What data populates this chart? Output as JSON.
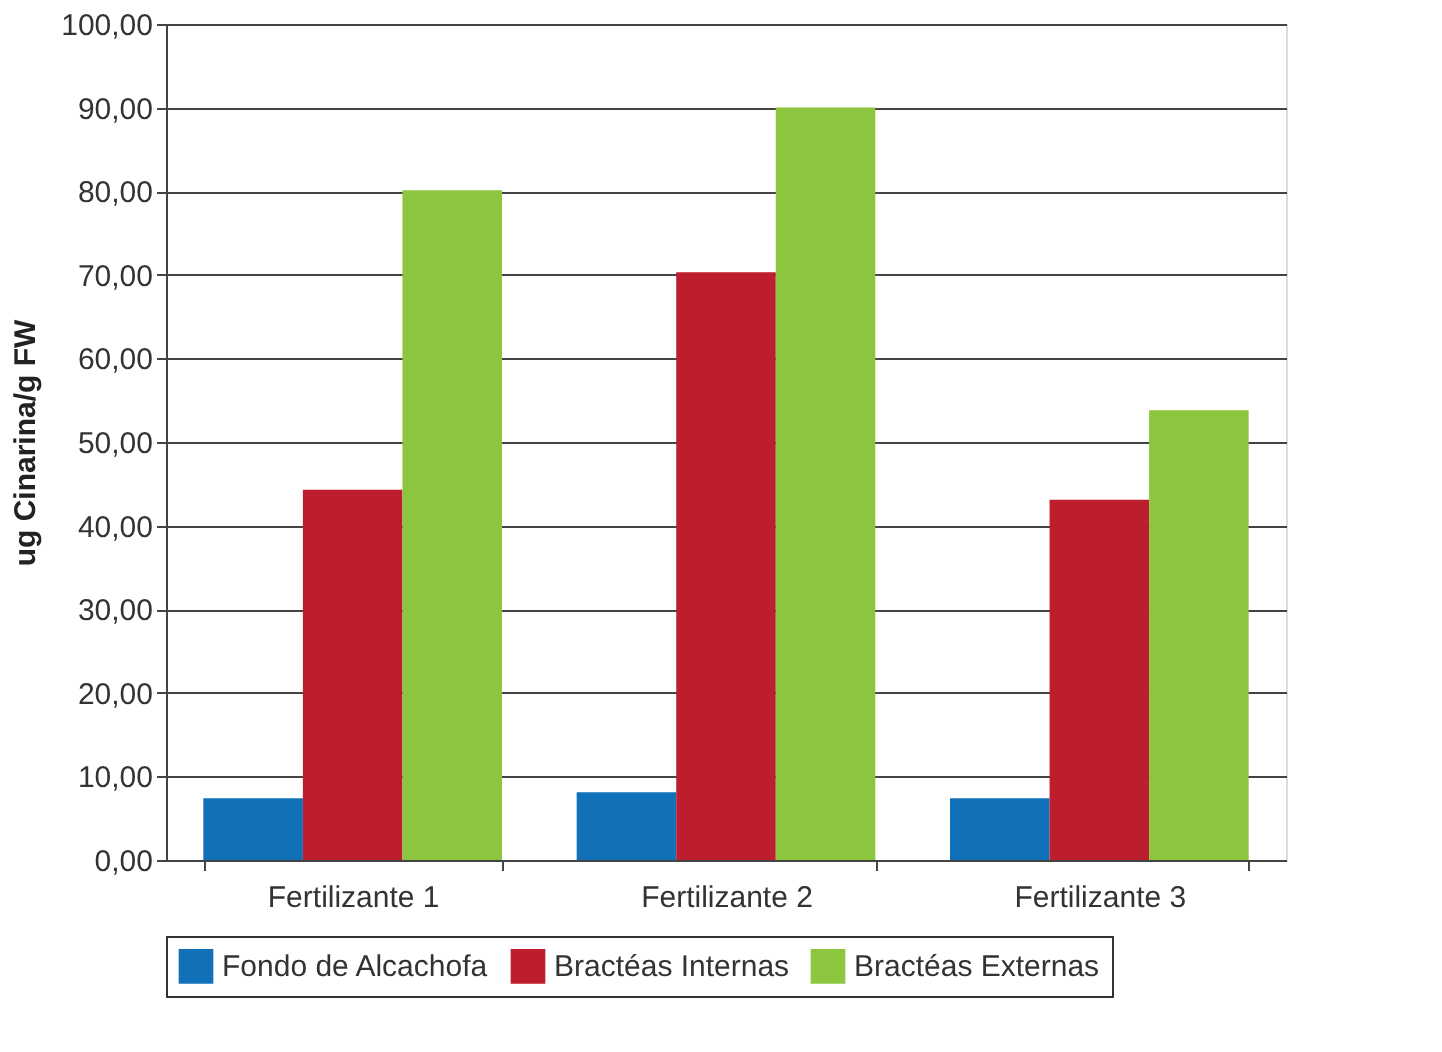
{
  "chart_data": {
    "type": "bar",
    "ylabel": "ug Cinarina/g FW",
    "categories": [
      "Fertilizante 1",
      "Fertilizante 2",
      "Fertilizante 3"
    ],
    "series": [
      {
        "name": "Fondo de Alcachofa",
        "color": "#1070b8",
        "values": [
          7.4,
          8.1,
          7.4
        ]
      },
      {
        "name": "Bractéas Internas",
        "color": "#bc1e2d",
        "values": [
          44.3,
          70.3,
          43.1
        ]
      },
      {
        "name": "Bractéas Externas",
        "color": "#8cc63f",
        "values": [
          80.1,
          90.0,
          53.8
        ]
      }
    ],
    "ylim": [
      0,
      100
    ],
    "yticks": [
      {
        "value": 0,
        "label": "0,00"
      },
      {
        "value": 10,
        "label": "10,00"
      },
      {
        "value": 20,
        "label": "20,00"
      },
      {
        "value": 30,
        "label": "30,00"
      },
      {
        "value": 40,
        "label": "40,00"
      },
      {
        "value": 50,
        "label": "50,00"
      },
      {
        "value": 60,
        "label": "60,00"
      },
      {
        "value": 70,
        "label": "70,00"
      },
      {
        "value": 80,
        "label": "80,00"
      },
      {
        "value": 90,
        "label": "90,00"
      },
      {
        "value": 100,
        "label": "100,00"
      }
    ],
    "grid": "y",
    "legend": "bottom"
  }
}
